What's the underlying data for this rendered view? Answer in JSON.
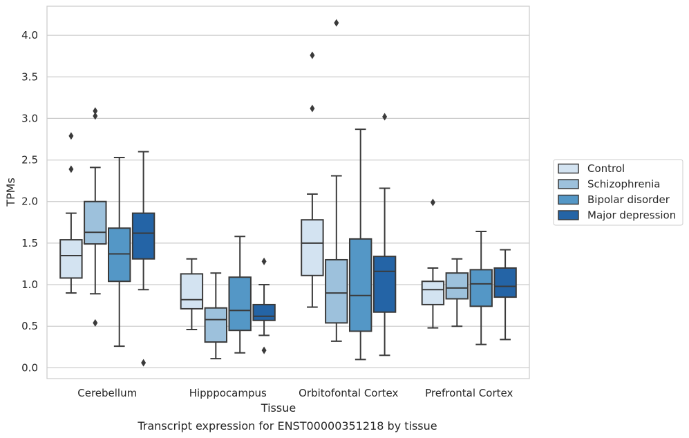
{
  "chart_data": {
    "type": "box",
    "caption": "Transcript expression for ENST00000351218 by tissue",
    "xlabel": "Tissue",
    "ylabel": "TPMs",
    "ylim": [
      -0.13,
      4.35
    ],
    "yticks": [
      0.0,
      0.5,
      1.0,
      1.5,
      2.0,
      2.5,
      3.0,
      3.5,
      4.0
    ],
    "ytick_labels": [
      "0.0",
      "0.5",
      "1.0",
      "1.5",
      "2.0",
      "2.5",
      "3.0",
      "3.5",
      "4.0"
    ],
    "grid": true,
    "legend_position": "right",
    "categories": [
      "Cerebellum",
      "Hipppocampus",
      "Orbitofontal Cortex",
      "Prefrontal Cortex"
    ],
    "series": [
      {
        "name": "Control",
        "color": "#d3e3f1",
        "boxes": [
          {
            "whislo": 0.9,
            "q1": 1.08,
            "med": 1.35,
            "q3": 1.54,
            "whishi": 1.86,
            "fliers": [
              2.39,
              2.79
            ]
          },
          {
            "whislo": 0.46,
            "q1": 0.71,
            "med": 0.82,
            "q3": 1.13,
            "whishi": 1.31,
            "fliers": []
          },
          {
            "whislo": 0.73,
            "q1": 1.11,
            "med": 1.5,
            "q3": 1.78,
            "whishi": 2.09,
            "fliers": [
              3.12,
              3.76
            ]
          },
          {
            "whislo": 0.48,
            "q1": 0.76,
            "med": 0.94,
            "q3": 1.04,
            "whishi": 1.2,
            "fliers": [
              1.99
            ]
          }
        ]
      },
      {
        "name": "Schizophrenia",
        "color": "#9dc1dc",
        "boxes": [
          {
            "whislo": 0.89,
            "q1": 1.49,
            "med": 1.63,
            "q3": 2.0,
            "whishi": 2.41,
            "fliers": [
              0.54,
              3.03,
              3.09
            ]
          },
          {
            "whislo": 0.11,
            "q1": 0.31,
            "med": 0.58,
            "q3": 0.72,
            "whishi": 1.14,
            "fliers": []
          },
          {
            "whislo": 0.32,
            "q1": 0.54,
            "med": 0.9,
            "q3": 1.3,
            "whishi": 2.31,
            "fliers": [
              4.15
            ]
          },
          {
            "whislo": 0.5,
            "q1": 0.83,
            "med": 0.96,
            "q3": 1.14,
            "whishi": 1.31,
            "fliers": []
          }
        ]
      },
      {
        "name": "Bipolar disorder",
        "color": "#5497c6",
        "boxes": [
          {
            "whislo": 0.26,
            "q1": 1.04,
            "med": 1.37,
            "q3": 1.68,
            "whishi": 2.53,
            "fliers": []
          },
          {
            "whislo": 0.18,
            "q1": 0.45,
            "med": 0.69,
            "q3": 1.09,
            "whishi": 1.58,
            "fliers": []
          },
          {
            "whislo": 0.1,
            "q1": 0.44,
            "med": 0.87,
            "q3": 1.55,
            "whishi": 2.87,
            "fliers": []
          },
          {
            "whislo": 0.28,
            "q1": 0.74,
            "med": 1.01,
            "q3": 1.18,
            "whishi": 1.64,
            "fliers": []
          }
        ]
      },
      {
        "name": "Major depression",
        "color": "#2464a6",
        "boxes": [
          {
            "whislo": 0.94,
            "q1": 1.31,
            "med": 1.62,
            "q3": 1.86,
            "whishi": 2.6,
            "fliers": [
              0.06
            ]
          },
          {
            "whislo": 0.39,
            "q1": 0.57,
            "med": 0.62,
            "q3": 0.76,
            "whishi": 1.0,
            "fliers": [
              0.21,
              1.28
            ]
          },
          {
            "whislo": 0.15,
            "q1": 0.67,
            "med": 1.16,
            "q3": 1.34,
            "whishi": 2.16,
            "fliers": [
              3.02
            ]
          },
          {
            "whislo": 0.34,
            "q1": 0.85,
            "med": 0.98,
            "q3": 1.2,
            "whishi": 1.42,
            "fliers": []
          }
        ]
      }
    ]
  }
}
